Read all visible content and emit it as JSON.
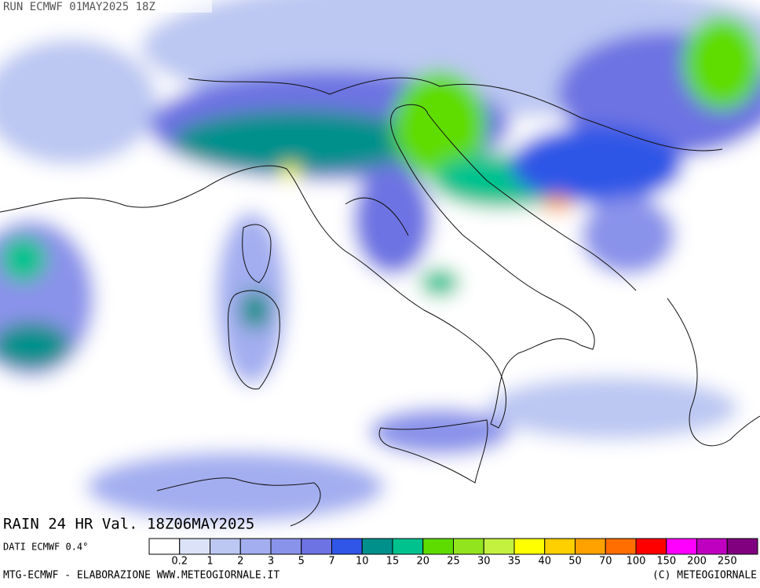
{
  "header": {
    "run": "RUN ECMWF 01MAY2025 18Z",
    "title": "RAIN 24 HR Val. 18Z06MAY2025",
    "source": "DATI ECMWF 0.4°"
  },
  "legend": {
    "labels": [
      0.2,
      1,
      2,
      3,
      5,
      7,
      10,
      15,
      20,
      25,
      30,
      35,
      40,
      50,
      70,
      100,
      150,
      200,
      250
    ],
    "colors": [
      "#ffffff",
      "#dce3f8",
      "#bcc7f2",
      "#a3aef0",
      "#8a93ea",
      "#6d73e2",
      "#2f56e6",
      "#00908c",
      "#00c28e",
      "#5edc00",
      "#92e41e",
      "#c4f040",
      "#ffff00",
      "#ffd000",
      "#ffa200",
      "#ff6e00",
      "#ff0000",
      "#ff00ff",
      "#c000c0",
      "#80007f"
    ]
  },
  "footer": {
    "left": "MTG-ECMWF - ELABORAZIONE WWW.METEOGIORNALE.IT",
    "right": "(C) METEOGIORNALE"
  }
}
